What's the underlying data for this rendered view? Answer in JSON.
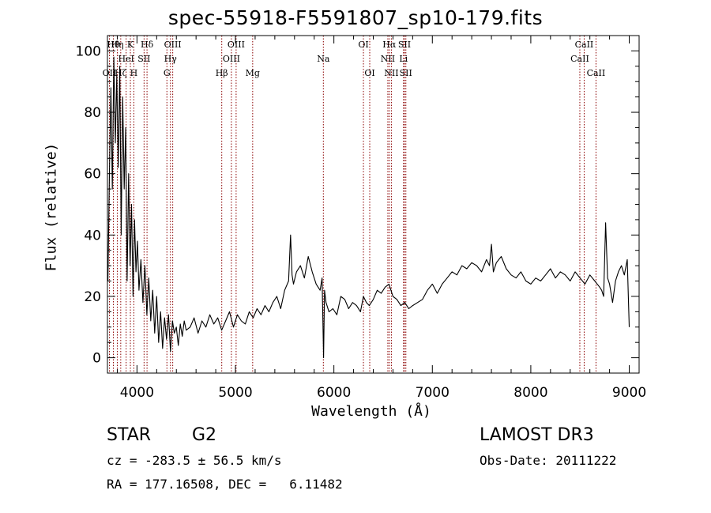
{
  "title": "spec-55918-F5591807_sp10-179.fits",
  "info": {
    "class": "STAR",
    "subclass": "G2",
    "survey": "LAMOST DR3",
    "cz": "cz = -283.5 ± 56.5 km/s",
    "obs_date": "Obs-Date: 20111222",
    "radec": "RA = 177.16508, DEC =   6.11482"
  },
  "chart_data": {
    "type": "line",
    "title": "spec-55918-F5591807_sp10-179.fits",
    "xlabel": "Wavelength (Å)",
    "ylabel": "Flux (relative)",
    "xlim": [
      3700,
      9100
    ],
    "ylim": [
      -5,
      105
    ],
    "xticks": [
      4000,
      5000,
      6000,
      7000,
      8000,
      9000
    ],
    "xtick_labels": [
      "4000",
      "5000",
      "6000",
      "7000",
      "8000",
      "9000"
    ],
    "yticks": [
      0,
      20,
      40,
      60,
      80,
      100
    ],
    "ytick_labels": [
      "0",
      "20",
      "40",
      "60",
      "80",
      "100"
    ],
    "line_color": "#000000",
    "marker_color": "#8b0000",
    "series": [
      {
        "name": "flux",
        "x": [
          3705,
          3720,
          3735,
          3750,
          3765,
          3780,
          3795,
          3810,
          3825,
          3840,
          3855,
          3870,
          3885,
          3900,
          3915,
          3930,
          3945,
          3960,
          3975,
          3990,
          4005,
          4020,
          4040,
          4060,
          4080,
          4100,
          4120,
          4140,
          4160,
          4180,
          4200,
          4220,
          4240,
          4260,
          4280,
          4300,
          4320,
          4340,
          4360,
          4380,
          4400,
          4420,
          4440,
          4460,
          4480,
          4500,
          4540,
          4580,
          4620,
          4660,
          4700,
          4740,
          4780,
          4820,
          4860,
          4900,
          4940,
          4980,
          5020,
          5060,
          5100,
          5140,
          5180,
          5220,
          5260,
          5300,
          5340,
          5380,
          5420,
          5460,
          5500,
          5540,
          5560,
          5575,
          5590,
          5620,
          5660,
          5700,
          5740,
          5780,
          5820,
          5860,
          5880,
          5895,
          5905,
          5920,
          5950,
          5990,
          6030,
          6070,
          6110,
          6150,
          6190,
          6230,
          6270,
          6300,
          6330,
          6360,
          6400,
          6440,
          6480,
          6520,
          6560,
          6600,
          6640,
          6680,
          6720,
          6760,
          6800,
          6850,
          6900,
          6950,
          7000,
          7050,
          7100,
          7150,
          7200,
          7250,
          7300,
          7350,
          7400,
          7450,
          7500,
          7550,
          7580,
          7600,
          7620,
          7650,
          7700,
          7750,
          7800,
          7850,
          7900,
          7950,
          8000,
          8050,
          8100,
          8150,
          8200,
          8250,
          8300,
          8350,
          8400,
          8450,
          8500,
          8550,
          8600,
          8650,
          8700,
          8720,
          8740,
          8760,
          8780,
          8800,
          8830,
          8860,
          8890,
          8920,
          8950,
          8980,
          9000
        ],
        "values": [
          25,
          60,
          88,
          55,
          98,
          70,
          92,
          62,
          95,
          40,
          85,
          55,
          75,
          25,
          60,
          30,
          50,
          20,
          45,
          28,
          38,
          22,
          32,
          18,
          30,
          14,
          26,
          12,
          22,
          8,
          20,
          5,
          15,
          3,
          13,
          6,
          14,
          2,
          12,
          8,
          10,
          4,
          11,
          7,
          12,
          9,
          10,
          13,
          8,
          12,
          10,
          14,
          11,
          13,
          9,
          12,
          15,
          10,
          14,
          12,
          11,
          15,
          13,
          16,
          14,
          17,
          15,
          18,
          20,
          16,
          22,
          25,
          40,
          27,
          24,
          28,
          30,
          26,
          33,
          28,
          24,
          22,
          26,
          0,
          22,
          18,
          15,
          16,
          14,
          20,
          19,
          16,
          18,
          17,
          15,
          20,
          18,
          17,
          19,
          22,
          21,
          23,
          24,
          20,
          19,
          17,
          18,
          16,
          17,
          18,
          19,
          22,
          24,
          21,
          24,
          26,
          28,
          27,
          30,
          29,
          31,
          30,
          28,
          32,
          30,
          37,
          28,
          31,
          33,
          29,
          27,
          26,
          28,
          25,
          24,
          26,
          25,
          27,
          29,
          26,
          28,
          27,
          25,
          28,
          26,
          24,
          27,
          25,
          23,
          22,
          20,
          44,
          26,
          24,
          18,
          25,
          28,
          30,
          27,
          32,
          10
        ]
      }
    ],
    "lines": [
      {
        "wave": 3720,
        "label": "OII",
        "row": 2
      },
      {
        "wave": 3760,
        "label": "Hθ",
        "row": 0
      },
      {
        "wave": 3800,
        "label": "Hη",
        "row": 0
      },
      {
        "wave": 3835,
        "label": "Hζ",
        "row": 2
      },
      {
        "wave": 3890,
        "label": "HeI",
        "row": 1
      },
      {
        "wave": 3933,
        "label": "K",
        "row": 0
      },
      {
        "wave": 3968,
        "label": "H",
        "row": 2
      },
      {
        "wave": 4072,
        "label": "SII",
        "row": 1
      },
      {
        "wave": 4102,
        "label": "Hδ",
        "row": 0
      },
      {
        "wave": 4304,
        "label": "G",
        "row": 2
      },
      {
        "wave": 4340,
        "label": "Hγ",
        "row": 1
      },
      {
        "wave": 4363,
        "label": "OIII",
        "row": 0
      },
      {
        "wave": 4861,
        "label": "Hβ",
        "row": 2
      },
      {
        "wave": 4959,
        "label": "OIII",
        "row": 1
      },
      {
        "wave": 5007,
        "label": "OIII",
        "row": 0
      },
      {
        "wave": 5175,
        "label": "Mg",
        "row": 2
      },
      {
        "wave": 5893,
        "label": "Na",
        "row": 1
      },
      {
        "wave": 6300,
        "label": "OI",
        "row": 0
      },
      {
        "wave": 6364,
        "label": "OI",
        "row": 2
      },
      {
        "wave": 6548,
        "label": "NII",
        "row": 1
      },
      {
        "wave": 6563,
        "label": "Hα",
        "row": 0
      },
      {
        "wave": 6584,
        "label": "NII",
        "row": 2
      },
      {
        "wave": 6707,
        "label": "Li",
        "row": 1
      },
      {
        "wave": 6717,
        "label": "SII",
        "row": 0
      },
      {
        "wave": 6731,
        "label": "SII",
        "row": 2
      },
      {
        "wave": 8498,
        "label": "CaII",
        "row": 1
      },
      {
        "wave": 8542,
        "label": "CaII",
        "row": 0
      },
      {
        "wave": 8662,
        "label": "CaII",
        "row": 2
      }
    ]
  }
}
